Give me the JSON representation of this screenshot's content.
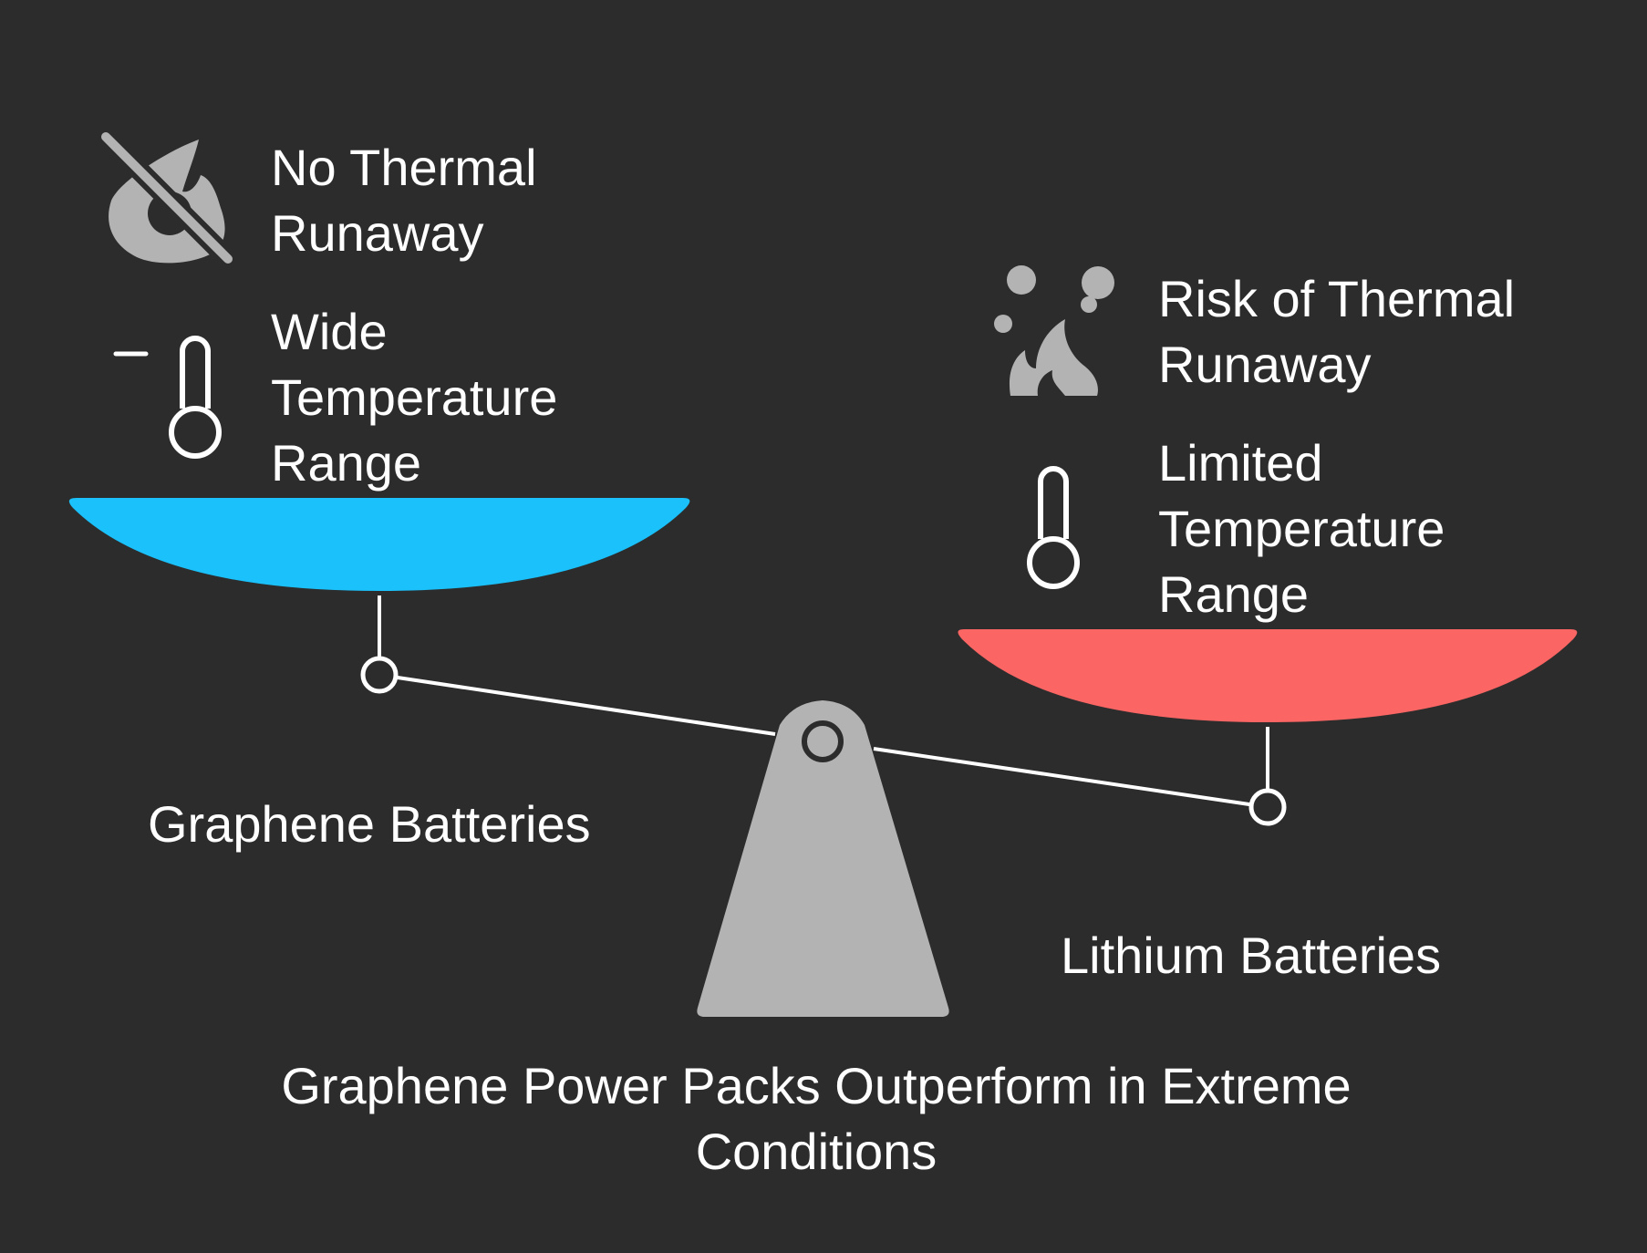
{
  "colors": {
    "background": "#2c2c2c",
    "left_pan": "#1ac1fb",
    "right_pan": "#fb6563",
    "fulcrum": "#b3b3b3",
    "icon": "#b3b3b3",
    "line": "#ffffff",
    "text": "#ffffff"
  },
  "left": {
    "title": "Graphene Batteries",
    "items": [
      {
        "icon": "fire-off-icon",
        "label": "No Thermal\nRunaway"
      },
      {
        "icon": "thermometer-minus-icon",
        "label": "Wide\nTemperature\nRange"
      }
    ]
  },
  "right": {
    "title": "Lithium Batteries",
    "items": [
      {
        "icon": "fire-smoke-icon",
        "label": "Risk of Thermal\nRunaway"
      },
      {
        "icon": "thermometer-icon",
        "label": "Limited\nTemperature\nRange"
      }
    ]
  },
  "caption": "Graphene Power Packs Outperform in Extreme Conditions"
}
